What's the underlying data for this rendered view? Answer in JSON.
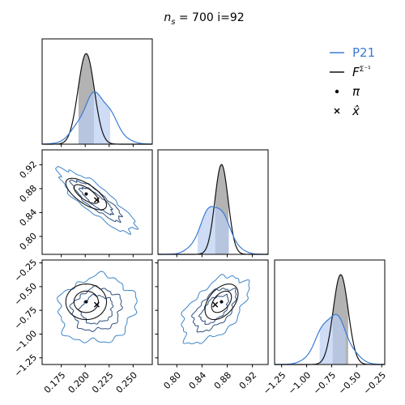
{
  "title": "n_s = 700  i=92",
  "title_parts": {
    "n": "n",
    "sub": "s",
    "rest": " = 700  i=92"
  },
  "colors": {
    "p21": "#3a7bd5",
    "p21_fill": "#b9cdf2",
    "fisher": "#111111",
    "fisher_fill": "#9a9a9a",
    "overlap_fill": "#8e9dbb",
    "contour_p21_outer": "#3f86c9",
    "contour_p21_inner": "#2e4f7e"
  },
  "legend": {
    "placement": "top-right",
    "entries": [
      {
        "label": "P21",
        "marker": "line",
        "color": "#3a7bd5"
      },
      {
        "label": "F",
        "sub": "Σ⁻¹",
        "marker": "line",
        "color": "#111111"
      },
      {
        "label": "π",
        "marker": "dot",
        "color": "#000000"
      },
      {
        "label": "x̂",
        "marker": "x",
        "color": "#000000"
      }
    ]
  },
  "chart_data": {
    "type": "corner",
    "params": [
      "p0",
      "p1",
      "p2"
    ],
    "ranges": {
      "p0": [
        0.155,
        0.27
      ],
      "p1": [
        0.77,
        0.945
      ],
      "p2": [
        -1.32,
        -0.22
      ]
    },
    "ticks": {
      "p0": [
        0.175,
        0.2,
        0.225,
        0.25
      ],
      "p1": [
        0.8,
        0.84,
        0.88,
        0.92
      ],
      "p2": [
        -1.25,
        -1.0,
        -0.75,
        -0.5,
        -0.25
      ]
    },
    "tick_labels": {
      "p0": [
        "0.175",
        "0.200",
        "0.225",
        "0.250"
      ],
      "p1": [
        "0.80",
        "0.84",
        "0.88",
        "0.92"
      ],
      "p2": [
        "−1.25",
        "−1.00",
        "−0.75",
        "−0.50",
        "−0.25"
      ]
    },
    "truth_pi": {
      "p0": 0.201,
      "p1": 0.871,
      "p2": -0.66
    },
    "estimate_xhat": {
      "p0": 0.212,
      "p1": 0.861,
      "p2": -0.69
    },
    "fisher": {
      "mean": {
        "p0": 0.201,
        "p1": 0.871,
        "p2": -0.66
      },
      "sigma": {
        "p0": 0.0085,
        "p1": 0.0105,
        "p2": 0.075
      },
      "interval": {
        "p0": [
          0.193,
          0.209
        ],
        "p1": [
          0.861,
          0.882
        ],
        "p2": [
          -0.74,
          -0.585
        ]
      }
    },
    "p21": {
      "mean": {
        "p0": 0.212,
        "p1": 0.86,
        "p2": -0.74
      },
      "sigma": {
        "p0": 0.016,
        "p1": 0.021,
        "p2": 0.14
      },
      "interval": {
        "p0": [
          0.193,
          0.226
        ],
        "p1": [
          0.833,
          0.883
        ],
        "p2": [
          -0.87,
          -0.61
        ]
      }
    },
    "correlations": {
      "p0_p1": {
        "p21": -0.86,
        "fisher": -0.7
      },
      "p0_p2": {
        "p21": 0.1,
        "fisher": 0.0
      },
      "p1_p2": {
        "p21": 0.55,
        "fisher": 0.45
      }
    },
    "contour_levels_sigma": [
      1,
      2,
      3
    ]
  }
}
